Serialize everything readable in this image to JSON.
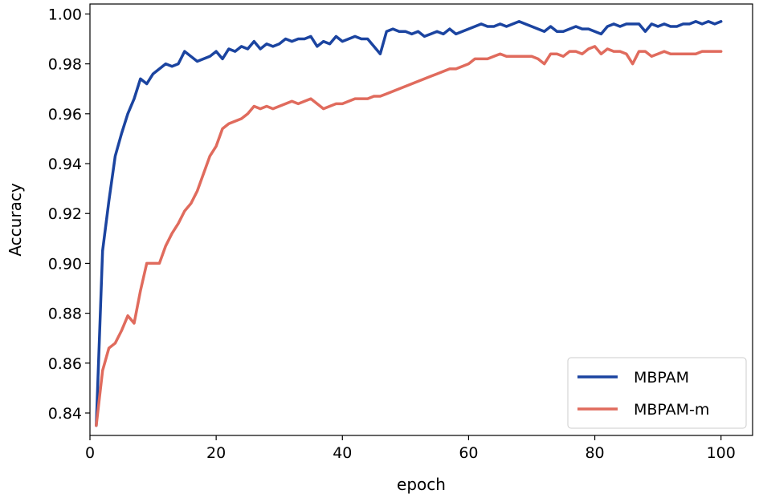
{
  "chart_data": {
    "type": "line",
    "title": "",
    "xlabel": "epoch",
    "ylabel": "Accuracy",
    "xlim": [
      0,
      105
    ],
    "ylim": [
      0.831,
      1.004
    ],
    "xticks": [
      0,
      20,
      40,
      60,
      80,
      100
    ],
    "yticks": [
      0.84,
      0.86,
      0.88,
      0.9,
      0.92,
      0.94,
      0.96,
      0.98,
      1.0
    ],
    "ytick_labels": [
      "0.84",
      "0.86",
      "0.88",
      "0.90",
      "0.92",
      "0.94",
      "0.96",
      "0.98",
      "1.00"
    ],
    "grid": false,
    "legend_position": "lower-right",
    "series": [
      {
        "name": "MBPAM",
        "color": "#1b44a0",
        "points": [
          [
            1,
            0.835
          ],
          [
            2,
            0.905
          ],
          [
            3,
            0.925
          ],
          [
            4,
            0.943
          ],
          [
            5,
            0.952
          ],
          [
            6,
            0.96
          ],
          [
            7,
            0.966
          ],
          [
            8,
            0.974
          ],
          [
            9,
            0.972
          ],
          [
            10,
            0.976
          ],
          [
            11,
            0.978
          ],
          [
            12,
            0.98
          ],
          [
            13,
            0.979
          ],
          [
            14,
            0.98
          ],
          [
            15,
            0.985
          ],
          [
            16,
            0.983
          ],
          [
            17,
            0.981
          ],
          [
            18,
            0.982
          ],
          [
            19,
            0.983
          ],
          [
            20,
            0.985
          ],
          [
            21,
            0.982
          ],
          [
            22,
            0.986
          ],
          [
            23,
            0.985
          ],
          [
            24,
            0.987
          ],
          [
            25,
            0.986
          ],
          [
            26,
            0.989
          ],
          [
            27,
            0.986
          ],
          [
            28,
            0.988
          ],
          [
            29,
            0.987
          ],
          [
            30,
            0.988
          ],
          [
            31,
            0.99
          ],
          [
            32,
            0.989
          ],
          [
            33,
            0.99
          ],
          [
            34,
            0.99
          ],
          [
            35,
            0.991
          ],
          [
            36,
            0.987
          ],
          [
            37,
            0.989
          ],
          [
            38,
            0.988
          ],
          [
            39,
            0.991
          ],
          [
            40,
            0.989
          ],
          [
            41,
            0.99
          ],
          [
            42,
            0.991
          ],
          [
            43,
            0.99
          ],
          [
            44,
            0.99
          ],
          [
            45,
            0.987
          ],
          [
            46,
            0.984
          ],
          [
            47,
            0.993
          ],
          [
            48,
            0.994
          ],
          [
            49,
            0.993
          ],
          [
            50,
            0.993
          ],
          [
            51,
            0.992
          ],
          [
            52,
            0.993
          ],
          [
            53,
            0.991
          ],
          [
            54,
            0.992
          ],
          [
            55,
            0.993
          ],
          [
            56,
            0.992
          ],
          [
            57,
            0.994
          ],
          [
            58,
            0.992
          ],
          [
            59,
            0.993
          ],
          [
            60,
            0.994
          ],
          [
            61,
            0.995
          ],
          [
            62,
            0.996
          ],
          [
            63,
            0.995
          ],
          [
            64,
            0.995
          ],
          [
            65,
            0.996
          ],
          [
            66,
            0.995
          ],
          [
            67,
            0.996
          ],
          [
            68,
            0.997
          ],
          [
            69,
            0.996
          ],
          [
            70,
            0.995
          ],
          [
            71,
            0.994
          ],
          [
            72,
            0.993
          ],
          [
            73,
            0.995
          ],
          [
            74,
            0.993
          ],
          [
            75,
            0.993
          ],
          [
            76,
            0.994
          ],
          [
            77,
            0.995
          ],
          [
            78,
            0.994
          ],
          [
            79,
            0.994
          ],
          [
            80,
            0.993
          ],
          [
            81,
            0.992
          ],
          [
            82,
            0.995
          ],
          [
            83,
            0.996
          ],
          [
            84,
            0.995
          ],
          [
            85,
            0.996
          ],
          [
            86,
            0.996
          ],
          [
            87,
            0.996
          ],
          [
            88,
            0.993
          ],
          [
            89,
            0.996
          ],
          [
            90,
            0.995
          ],
          [
            91,
            0.996
          ],
          [
            92,
            0.995
          ],
          [
            93,
            0.995
          ],
          [
            94,
            0.996
          ],
          [
            95,
            0.996
          ],
          [
            96,
            0.997
          ],
          [
            97,
            0.996
          ],
          [
            98,
            0.997
          ],
          [
            99,
            0.996
          ],
          [
            100,
            0.997
          ]
        ]
      },
      {
        "name": "MBPAM-m",
        "color": "#e06b5d",
        "points": [
          [
            1,
            0.835
          ],
          [
            2,
            0.857
          ],
          [
            3,
            0.866
          ],
          [
            4,
            0.868
          ],
          [
            5,
            0.873
          ],
          [
            6,
            0.879
          ],
          [
            7,
            0.876
          ],
          [
            8,
            0.889
          ],
          [
            9,
            0.9
          ],
          [
            10,
            0.9
          ],
          [
            11,
            0.9
          ],
          [
            12,
            0.907
          ],
          [
            13,
            0.912
          ],
          [
            14,
            0.916
          ],
          [
            15,
            0.921
          ],
          [
            16,
            0.924
          ],
          [
            17,
            0.929
          ],
          [
            18,
            0.936
          ],
          [
            19,
            0.943
          ],
          [
            20,
            0.947
          ],
          [
            21,
            0.954
          ],
          [
            22,
            0.956
          ],
          [
            23,
            0.957
          ],
          [
            24,
            0.958
          ],
          [
            25,
            0.96
          ],
          [
            26,
            0.963
          ],
          [
            27,
            0.962
          ],
          [
            28,
            0.963
          ],
          [
            29,
            0.962
          ],
          [
            30,
            0.963
          ],
          [
            31,
            0.964
          ],
          [
            32,
            0.965
          ],
          [
            33,
            0.964
          ],
          [
            34,
            0.965
          ],
          [
            35,
            0.966
          ],
          [
            36,
            0.964
          ],
          [
            37,
            0.962
          ],
          [
            38,
            0.963
          ],
          [
            39,
            0.964
          ],
          [
            40,
            0.964
          ],
          [
            41,
            0.965
          ],
          [
            42,
            0.966
          ],
          [
            43,
            0.966
          ],
          [
            44,
            0.966
          ],
          [
            45,
            0.967
          ],
          [
            46,
            0.967
          ],
          [
            47,
            0.968
          ],
          [
            48,
            0.969
          ],
          [
            49,
            0.97
          ],
          [
            50,
            0.971
          ],
          [
            51,
            0.972
          ],
          [
            52,
            0.973
          ],
          [
            53,
            0.974
          ],
          [
            54,
            0.975
          ],
          [
            55,
            0.976
          ],
          [
            56,
            0.977
          ],
          [
            57,
            0.978
          ],
          [
            58,
            0.978
          ],
          [
            59,
            0.979
          ],
          [
            60,
            0.98
          ],
          [
            61,
            0.982
          ],
          [
            62,
            0.982
          ],
          [
            63,
            0.982
          ],
          [
            64,
            0.983
          ],
          [
            65,
            0.984
          ],
          [
            66,
            0.983
          ],
          [
            67,
            0.983
          ],
          [
            68,
            0.983
          ],
          [
            69,
            0.983
          ],
          [
            70,
            0.983
          ],
          [
            71,
            0.982
          ],
          [
            72,
            0.98
          ],
          [
            73,
            0.984
          ],
          [
            74,
            0.984
          ],
          [
            75,
            0.983
          ],
          [
            76,
            0.985
          ],
          [
            77,
            0.985
          ],
          [
            78,
            0.984
          ],
          [
            79,
            0.986
          ],
          [
            80,
            0.987
          ],
          [
            81,
            0.984
          ],
          [
            82,
            0.986
          ],
          [
            83,
            0.985
          ],
          [
            84,
            0.985
          ],
          [
            85,
            0.984
          ],
          [
            86,
            0.98
          ],
          [
            87,
            0.985
          ],
          [
            88,
            0.985
          ],
          [
            89,
            0.983
          ],
          [
            90,
            0.984
          ],
          [
            91,
            0.985
          ],
          [
            92,
            0.984
          ],
          [
            93,
            0.984
          ],
          [
            94,
            0.984
          ],
          [
            95,
            0.984
          ],
          [
            96,
            0.984
          ],
          [
            97,
            0.985
          ],
          [
            98,
            0.985
          ],
          [
            99,
            0.985
          ],
          [
            100,
            0.985
          ]
        ]
      }
    ]
  }
}
